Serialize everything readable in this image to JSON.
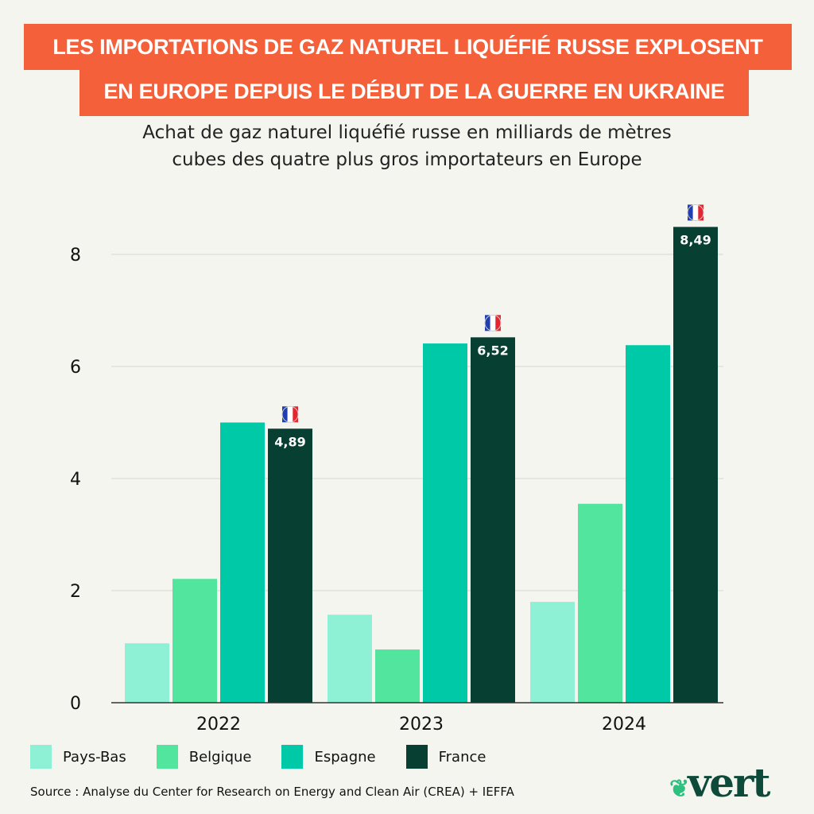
{
  "title_lines": [
    "LES IMPORTATIONS DE GAZ NATUREL LIQUÉFIÉ RUSSE EXPLOSENT",
    "EN EUROPE DEPUIS LE DÉBUT DE LA GUERRE EN UKRAINE"
  ],
  "subtitle_lines": [
    "Achat de gaz naturel liquéfié russe en milliards de mètres",
    "cubes des quatre plus gros importateurs en Europe"
  ],
  "source": "Source : Analyse du Center for Research on Energy and Clean Air (CREA) + IEFFA",
  "logo": "vert",
  "colors": {
    "banner": "#f4603a",
    "Pays-Bas": "#8ef0d4",
    "Belgique": "#52e59e",
    "Espagne": "#00c9a7",
    "France": "#083f33"
  },
  "chart_data": {
    "type": "bar",
    "categories": [
      "2022",
      "2023",
      "2024"
    ],
    "series": [
      {
        "name": "Pays-Bas",
        "values": [
          1.06,
          1.57,
          1.8
        ]
      },
      {
        "name": "Belgique",
        "values": [
          2.21,
          0.95,
          3.55
        ]
      },
      {
        "name": "Espagne",
        "values": [
          5.0,
          6.41,
          6.38
        ]
      },
      {
        "name": "France",
        "values": [
          4.89,
          6.52,
          8.49
        ]
      }
    ],
    "data_labels": {
      "France": [
        "4,89",
        "6,52",
        "8,49"
      ]
    },
    "annotation_icon": "french-flag-icon",
    "yticks": [
      "0",
      "2",
      "4",
      "6",
      "8"
    ],
    "ylim": [
      0,
      8.8
    ],
    "grid": true,
    "legend": "bottom"
  }
}
